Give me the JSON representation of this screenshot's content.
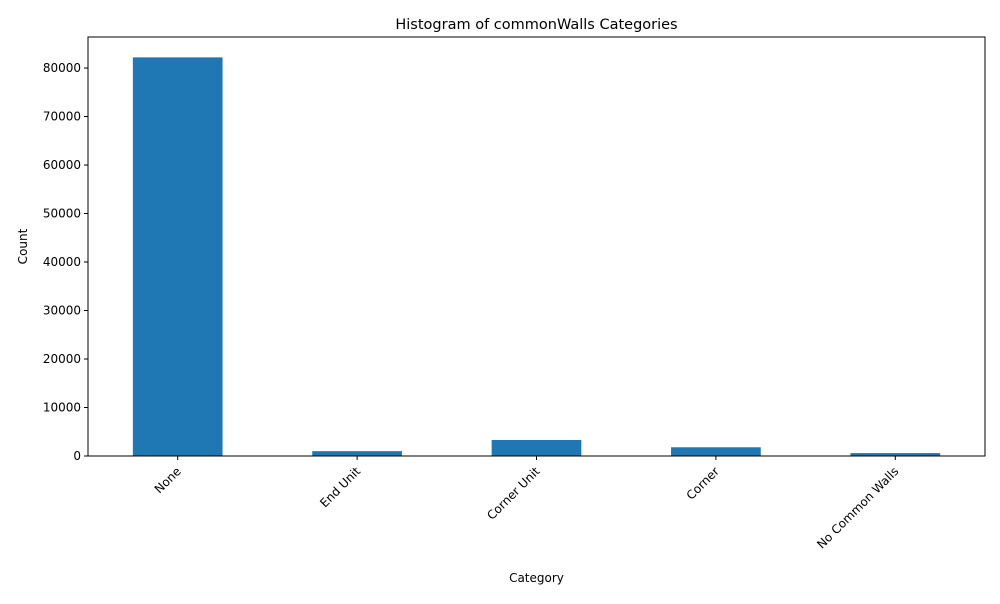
{
  "chart_data": {
    "type": "bar",
    "title": "Histogram of commonWalls Categories",
    "xlabel": "Category",
    "ylabel": "Count",
    "categories": [
      "None",
      "End Unit",
      "Corner Unit",
      "Corner",
      "No Common Walls"
    ],
    "values": [
      82200,
      1000,
      3300,
      1800,
      600
    ],
    "ylim": [
      0,
      86400
    ],
    "yticks": [
      0,
      10000,
      20000,
      30000,
      40000,
      50000,
      60000,
      70000,
      80000
    ],
    "grid": false,
    "legend": "none",
    "bar_color": "#1f77b4"
  }
}
